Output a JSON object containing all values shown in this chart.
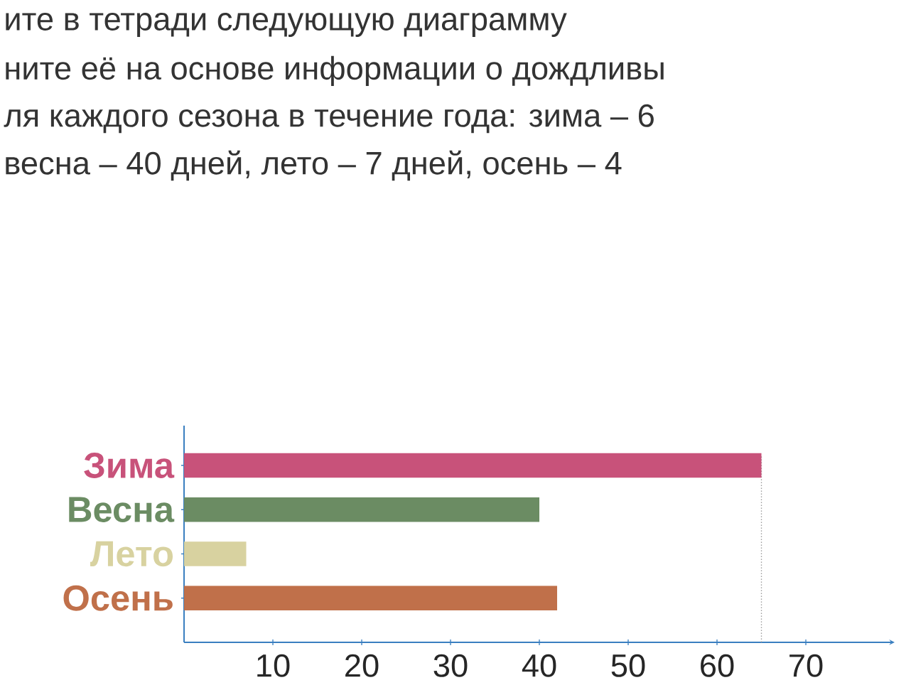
{
  "chart_data": {
    "type": "bar",
    "orientation": "horizontal",
    "annotations": [
      "ите в тетради следующую диаграмму",
      "ните её на основе информации о дождливы",
      "ля каждого сезона в течение года: зима – 6",
      "весна – 40 дней, лето – 7 дней, осень – 4"
    ],
    "categories": [
      "Зима",
      "Весна",
      "Лето",
      "Осень"
    ],
    "values": [
      65,
      40,
      7,
      42
    ],
    "colors": [
      "#c8527a",
      "#6b8c63",
      "#d8d2a0",
      "#c0704a"
    ],
    "xlim": [
      0,
      80
    ],
    "xticks": [
      10,
      20,
      30,
      40,
      50,
      60,
      70
    ],
    "ref_lines": [
      {
        "axis": "x",
        "value": 65,
        "line_style": "dotted",
        "color": "#999999"
      }
    ],
    "grid": false
  }
}
